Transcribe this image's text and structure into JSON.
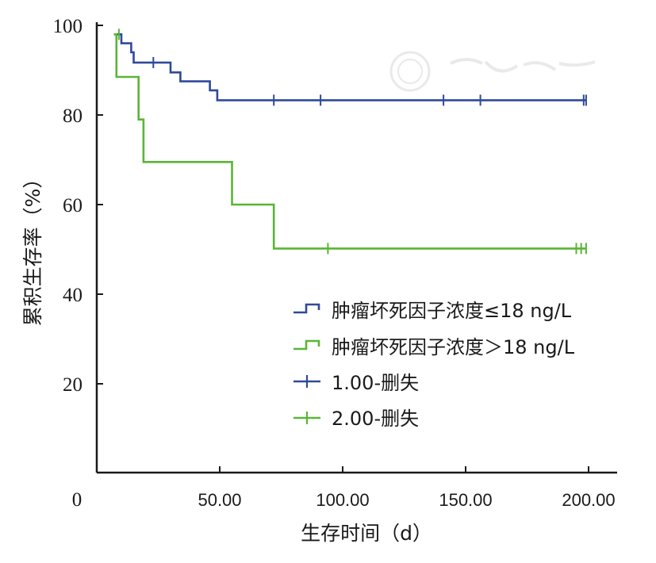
{
  "chart_data": {
    "type": "line",
    "step": true,
    "ylabel": "累积生存率（%）",
    "xlabel": "生存时间（d）",
    "x_tick_labels": [
      "0",
      "50.00",
      "100.00",
      "150.00",
      "200.00"
    ],
    "x_ticks": [
      0,
      50,
      100,
      150,
      200
    ],
    "y_tick_labels": [
      "100",
      "80",
      "60",
      "40",
      "20"
    ],
    "y_ticks": [
      100,
      80,
      60,
      40,
      20
    ],
    "xlim": [
      0,
      210
    ],
    "ylim": [
      0,
      100
    ],
    "grid": false,
    "legend_position": "bottom-right",
    "legend": [
      {
        "label": "肿瘤坏死因子浓度≤18 ng/L",
        "kind": "step",
        "color": "#2e4a9a"
      },
      {
        "label": "肿瘤坏死因子浓度＞18 ng/L",
        "kind": "step",
        "color": "#5ab535"
      },
      {
        "label": "1.00-删失",
        "kind": "censor",
        "color": "#2e4a9a"
      },
      {
        "label": "2.00-删失",
        "kind": "censor",
        "color": "#5ab535"
      }
    ],
    "series": [
      {
        "name": "肿瘤坏死因子浓度≤18 ng/L",
        "color": "#2e4a9a",
        "steps": [
          [
            7,
            98
          ],
          [
            10,
            98
          ],
          [
            10,
            96
          ],
          [
            14,
            96
          ],
          [
            14,
            94
          ],
          [
            15,
            94
          ],
          [
            15,
            91.7
          ],
          [
            30,
            91.7
          ],
          [
            30,
            89.5
          ],
          [
            34,
            89.5
          ],
          [
            34,
            87.5
          ],
          [
            46,
            87.5
          ],
          [
            46,
            85.5
          ],
          [
            49,
            85.5
          ],
          [
            49,
            83.3
          ],
          [
            199,
            83.3
          ]
        ],
        "censored": [
          [
            23,
            91.7
          ],
          [
            72,
            83.3
          ],
          [
            91,
            83.3
          ],
          [
            141,
            83.3
          ],
          [
            156,
            83.3
          ],
          [
            198,
            83.3
          ],
          [
            199,
            83.3
          ]
        ]
      },
      {
        "name": "肿瘤坏死因子浓度＞18 ng/L",
        "color": "#5ab535",
        "steps": [
          [
            7,
            98
          ],
          [
            8,
            98
          ],
          [
            8,
            88.5
          ],
          [
            17,
            88.5
          ],
          [
            17,
            79
          ],
          [
            19,
            79
          ],
          [
            19,
            69.5
          ],
          [
            55,
            69.5
          ],
          [
            55,
            60
          ],
          [
            72,
            60
          ],
          [
            72,
            50.2
          ],
          [
            199,
            50.2
          ]
        ],
        "censored": [
          [
            9,
            98
          ],
          [
            94,
            50.2
          ],
          [
            195,
            50.2
          ],
          [
            197,
            50.2
          ],
          [
            199,
            50.2
          ]
        ]
      }
    ]
  }
}
